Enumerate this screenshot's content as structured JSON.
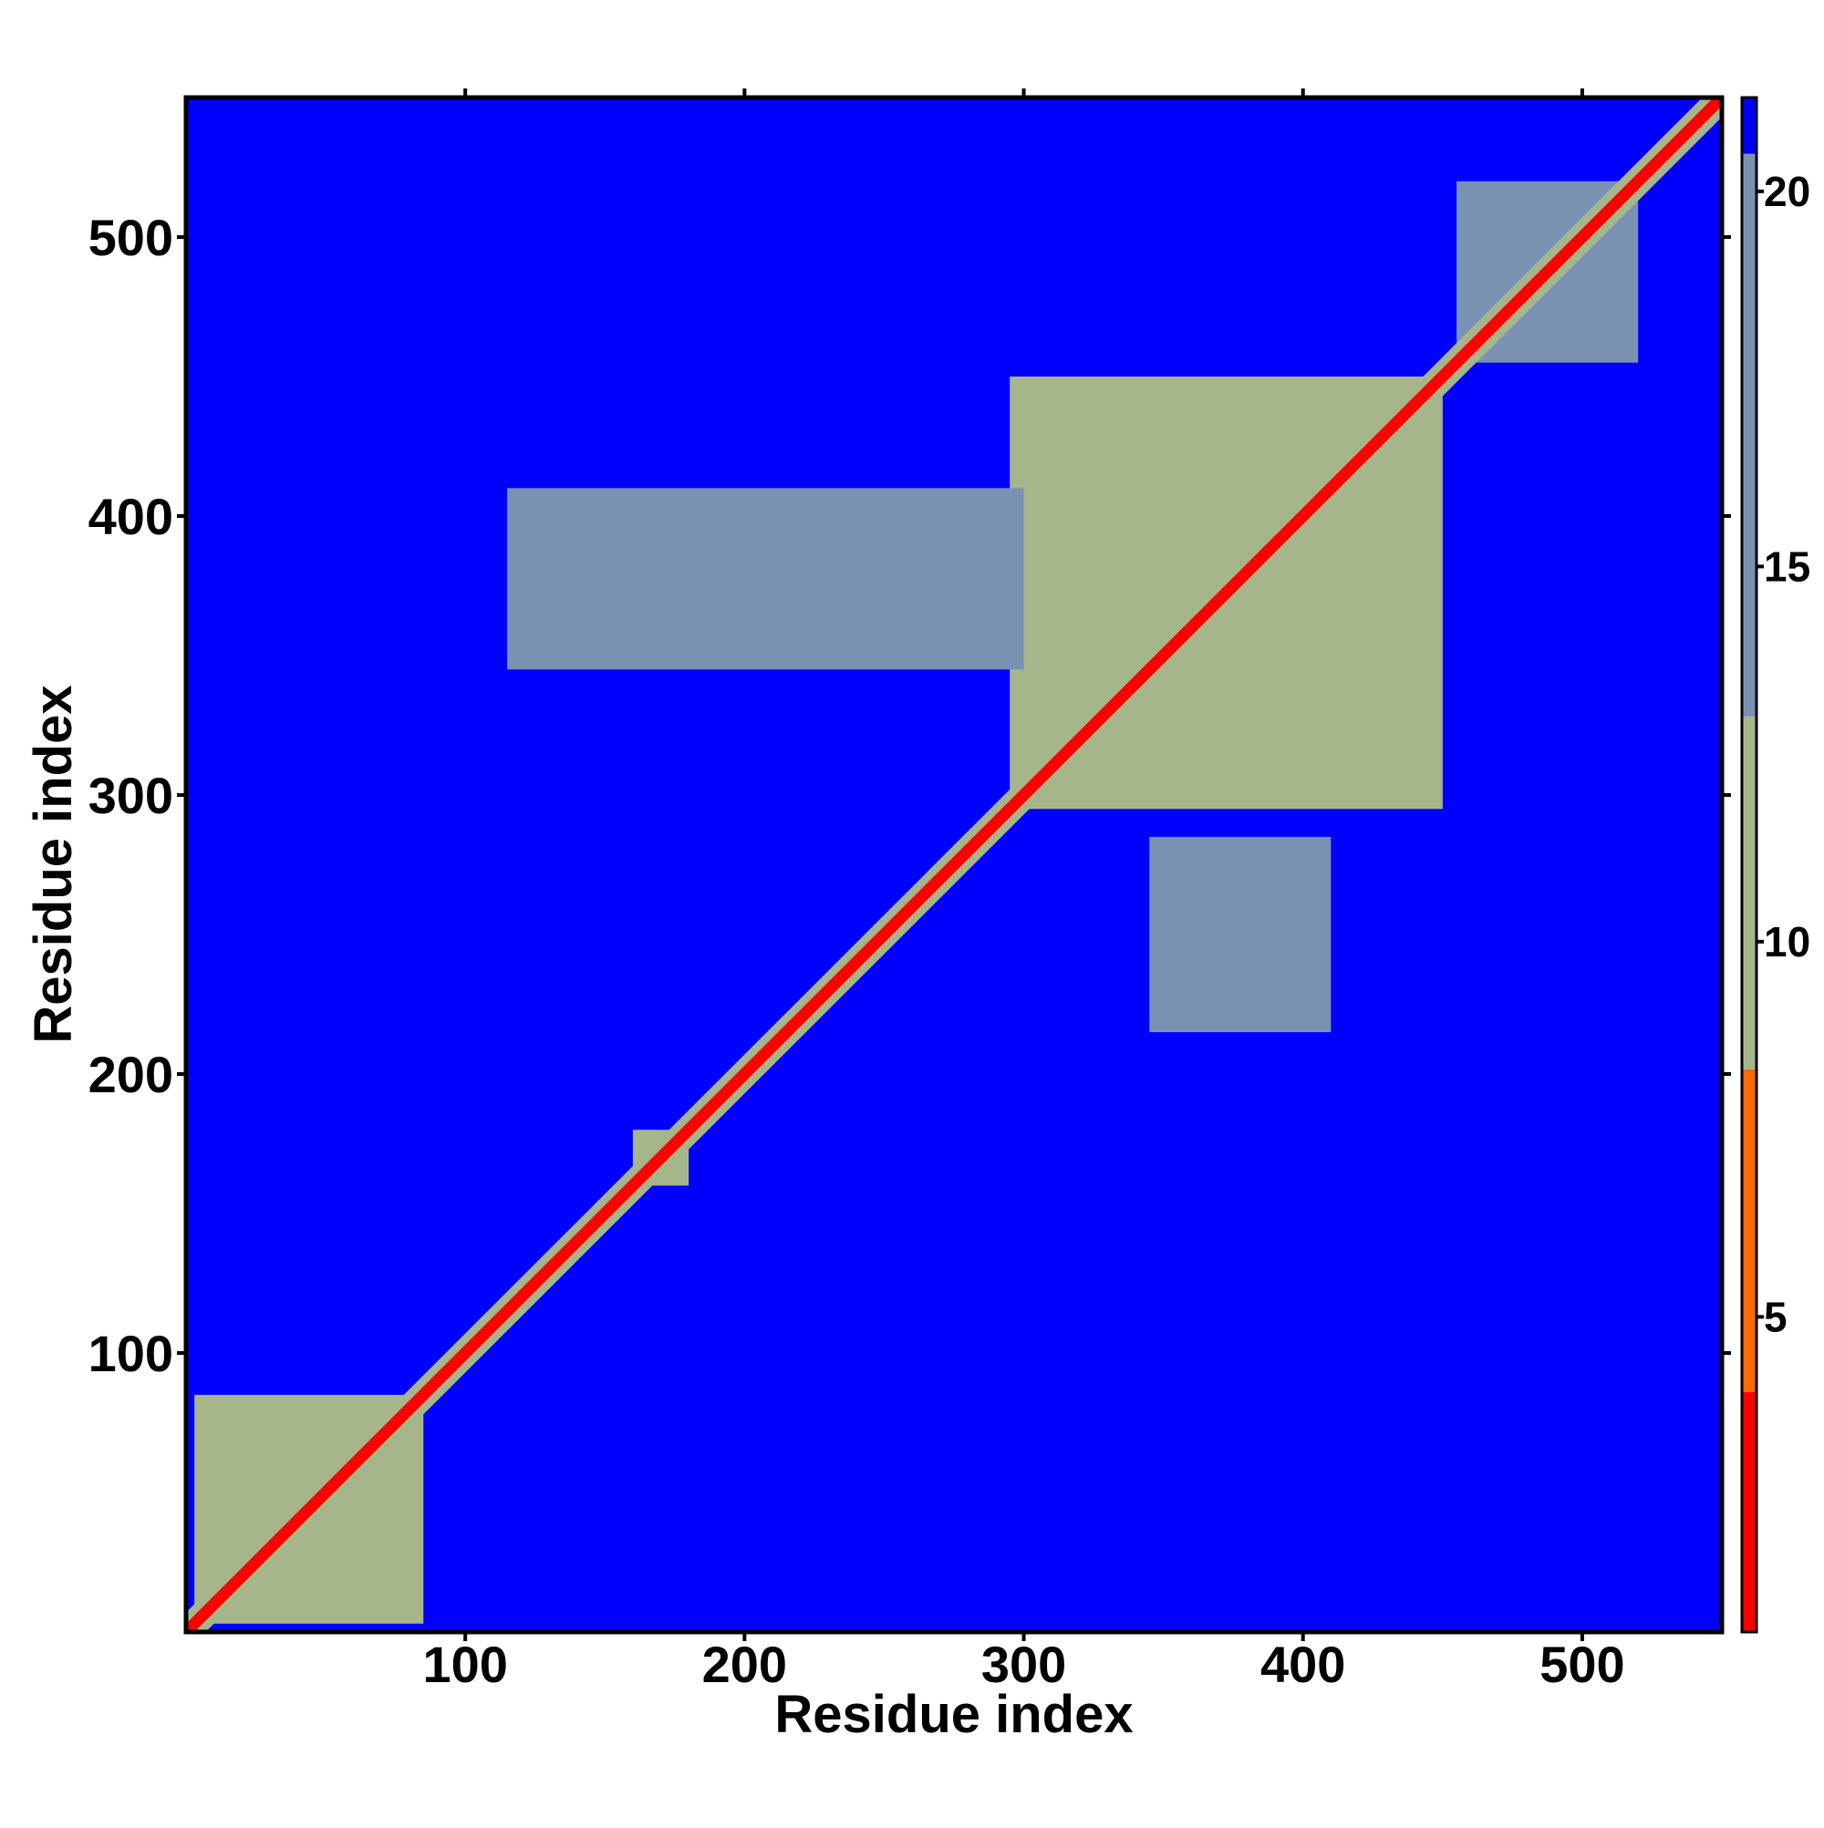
{
  "chart_data": {
    "type": "heatmap",
    "x_label": "Residue index",
    "y_label": "Residue index",
    "xlim": [
      0,
      550
    ],
    "ylim": [
      0,
      550
    ],
    "xticks": [
      100,
      200,
      300,
      400,
      500
    ],
    "yticks": [
      100,
      200,
      300,
      400,
      500
    ],
    "grid": false,
    "background_value": 21,
    "regions": [
      {
        "x": [
          3,
          85
        ],
        "y": [
          3,
          85
        ],
        "value": 12
      },
      {
        "x": [
          295,
          450
        ],
        "y": [
          295,
          450
        ],
        "value": 12
      },
      {
        "x": [
          345,
          410
        ],
        "y": [
          215,
          285
        ],
        "value": 16
      },
      {
        "x": [
          115,
          300
        ],
        "y": [
          345,
          410
        ],
        "value": 17
      },
      {
        "x": [
          455,
          520
        ],
        "y": [
          455,
          520
        ],
        "value": 15
      },
      {
        "x": [
          160,
          180
        ],
        "y": [
          160,
          180
        ],
        "value": 9
      }
    ],
    "bands": [
      {
        "offset": 7,
        "value": 10
      },
      {
        "offset": 3,
        "value": 2
      }
    ],
    "clim": [
      0.8,
      21.25
    ],
    "cticks": [
      5,
      10,
      15,
      20
    ],
    "colorscale": [
      [
        0.8,
        "#ff0000"
      ],
      [
        4,
        "#ff6a00"
      ],
      [
        8.3,
        "#a6b68a"
      ],
      [
        13,
        "#7a92b2"
      ],
      [
        20.5,
        "#0000ff"
      ]
    ]
  }
}
